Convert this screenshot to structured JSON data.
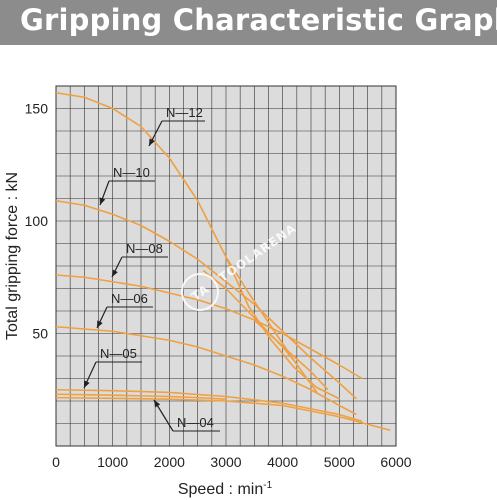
{
  "header": {
    "title": "Gripping Characteristic Graph"
  },
  "watermark": {
    "text": "TOOLARENA",
    "logo": "TA"
  },
  "colors": {
    "plot_bg": "#dcdcdc",
    "grid": "#333333",
    "curve": "#f0a040",
    "header_bg": "#8c8c8c"
  },
  "chart_data": {
    "type": "line",
    "title": "Gripping Characteristic Graph",
    "xlabel": "Speed : min",
    "xlabel_sup": "-1",
    "ylabel": "Total gripping force : kN",
    "xlim": [
      0,
      6000
    ],
    "ylim": [
      0,
      160
    ],
    "xticks": [
      0,
      1000,
      2000,
      3000,
      4000,
      5000,
      6000
    ],
    "xtick_labels": [
      "0",
      "1000",
      "2000",
      "3000",
      "4000",
      "5000",
      "6000"
    ],
    "yticks": [
      50,
      100,
      150
    ],
    "ytick_labels": [
      "50",
      "100",
      "150"
    ],
    "grid": true,
    "series": [
      {
        "name": "N-12",
        "lines": [
          [
            [
              0,
              157
            ],
            [
              500,
              155
            ],
            [
              1000,
              150
            ],
            [
              1500,
              142
            ],
            [
              2000,
              128
            ],
            [
              2500,
              109
            ],
            [
              2800,
              94
            ],
            [
              3000,
              84
            ],
            [
              3400,
              68
            ],
            [
              3800,
              53
            ],
            [
              4200,
              38
            ],
            [
              4600,
              24
            ]
          ],
          [
            [
              3000,
              84
            ],
            [
              3400,
              62
            ],
            [
              3800,
              47
            ],
            [
              4200,
              35
            ],
            [
              4600,
              26
            ],
            [
              5000,
              21
            ]
          ]
        ]
      },
      {
        "name": "N-10",
        "lines": [
          [
            [
              0,
              109
            ],
            [
              500,
              107
            ],
            [
              1000,
              103
            ],
            [
              1500,
              98
            ],
            [
              2000,
              91
            ],
            [
              2500,
              83
            ],
            [
              3000,
              73
            ],
            [
              3500,
              63
            ],
            [
              4000,
              51
            ],
            [
              4500,
              39
            ],
            [
              5000,
              28
            ],
            [
              5300,
              21
            ]
          ],
          [
            [
              2600,
              78
            ],
            [
              3000,
              70
            ],
            [
              3500,
              57
            ],
            [
              4000,
              44
            ],
            [
              4200,
              38
            ]
          ]
        ]
      },
      {
        "name": "N-08",
        "lines": [
          [
            [
              0,
              76
            ],
            [
              500,
              75
            ],
            [
              1000,
              73
            ],
            [
              1500,
              71
            ],
            [
              2000,
              68
            ],
            [
              2500,
              65
            ],
            [
              3000,
              61
            ],
            [
              3500,
              56
            ],
            [
              4000,
              50
            ],
            [
              4500,
              43
            ],
            [
              5000,
              36
            ],
            [
              5400,
              30
            ]
          ],
          [
            [
              3500,
              56
            ],
            [
              3800,
              49
            ],
            [
              4100,
              42
            ],
            [
              4500,
              33
            ],
            [
              4800,
              25
            ]
          ]
        ]
      },
      {
        "name": "N-06",
        "lines": [
          [
            [
              0,
              53
            ],
            [
              500,
              52
            ],
            [
              1000,
              51
            ],
            [
              1500,
              49
            ],
            [
              2000,
              47
            ],
            [
              2500,
              44
            ],
            [
              3000,
              40
            ],
            [
              3500,
              36
            ],
            [
              4000,
              31
            ],
            [
              4500,
              25
            ],
            [
              5000,
              18
            ],
            [
              5300,
              14
            ]
          ]
        ]
      },
      {
        "name": "N-05",
        "lines": [
          [
            [
              0,
              25
            ],
            [
              1000,
              24.6
            ],
            [
              2000,
              23.8
            ],
            [
              3000,
              22
            ],
            [
              4000,
              19
            ],
            [
              5000,
              14
            ],
            [
              5400,
              11
            ]
          ],
          [
            [
              0,
              23
            ],
            [
              1000,
              22.6
            ],
            [
              2000,
              22
            ],
            [
              2500,
              21.5
            ],
            [
              3000,
              20.8
            ]
          ]
        ]
      },
      {
        "name": "N-04",
        "lines": [
          [
            [
              0,
              21.5
            ],
            [
              1000,
              21.2
            ],
            [
              2000,
              20.8
            ],
            [
              3000,
              20
            ],
            [
              4000,
              18
            ],
            [
              5000,
              13
            ],
            [
              5900,
              7
            ]
          ]
        ]
      }
    ],
    "labels": [
      {
        "text": "N—12",
        "series": "N-12"
      },
      {
        "text": "N—10",
        "series": "N-10"
      },
      {
        "text": "N—08",
        "series": "N-08"
      },
      {
        "text": "N—06",
        "series": "N-06"
      },
      {
        "text": "N—05",
        "series": "N-05"
      },
      {
        "text": "N—04",
        "series": "N-04"
      }
    ]
  }
}
